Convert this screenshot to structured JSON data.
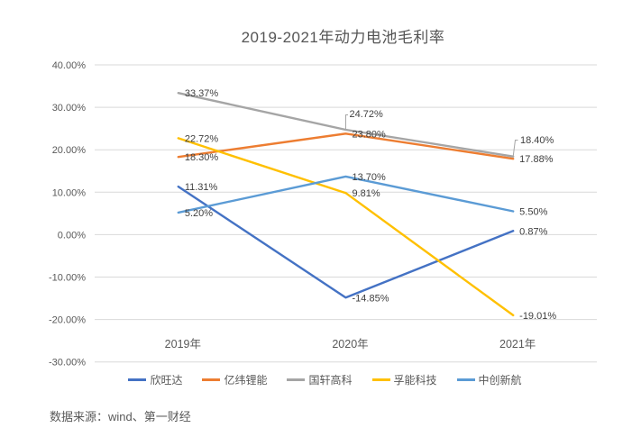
{
  "title": "2019-2021年动力电池毛利率",
  "source_note": "数据来源：wind、第一财经",
  "colors": {
    "series_blue": "#4472C4",
    "series_orange": "#ED7D31",
    "series_gray": "#A5A5A5",
    "series_gold": "#FFC000",
    "series_lightblue": "#5B9BD5",
    "gridline": "#D9D9D9",
    "axis_text": "#595959",
    "label_text": "#3F3F3F"
  },
  "chart_data": {
    "type": "line",
    "title": "2019-2021年动力电池毛利率",
    "categories": [
      "2019年",
      "2020年",
      "2021年"
    ],
    "series": [
      {
        "name": "欣旺达",
        "color": "#4472C4",
        "values": [
          11.31,
          -14.85,
          0.87
        ],
        "labels": [
          "11.31%",
          "-14.85%",
          "0.87%"
        ]
      },
      {
        "name": "亿纬锂能",
        "color": "#ED7D31",
        "values": [
          18.3,
          23.8,
          17.88
        ],
        "labels": [
          "18.30%",
          "23.80%",
          "17.88%"
        ]
      },
      {
        "name": "国轩高科",
        "color": "#A5A5A5",
        "values": [
          33.37,
          24.72,
          18.4
        ],
        "labels": [
          "33.37%",
          "24.72%",
          "18.40%"
        ]
      },
      {
        "name": "孚能科技",
        "color": "#FFC000",
        "values": [
          22.72,
          9.81,
          -19.01
        ],
        "labels": [
          "22.72%",
          "9.81%",
          "-19.01%"
        ]
      },
      {
        "name": "中创新航",
        "color": "#5B9BD5",
        "values": [
          5.2,
          13.7,
          5.5
        ],
        "labels": [
          "5.20%",
          "13.70%",
          "5.50%"
        ]
      }
    ],
    "y_ticks": [
      {
        "label": "40.00%",
        "value": 40
      },
      {
        "label": "30.00%",
        "value": 30
      },
      {
        "label": "20.00%",
        "value": 20
      },
      {
        "label": "10.00%",
        "value": 10
      },
      {
        "label": "0.00%",
        "value": 0
      },
      {
        "label": "-10.00%",
        "value": -10
      },
      {
        "label": "-20.00%",
        "value": -20
      },
      {
        "label": "-30.00%",
        "value": -30
      }
    ],
    "ylim": [
      -30,
      40
    ],
    "xlabel": "",
    "ylabel": "",
    "grid": true,
    "legend_position": "bottom"
  }
}
